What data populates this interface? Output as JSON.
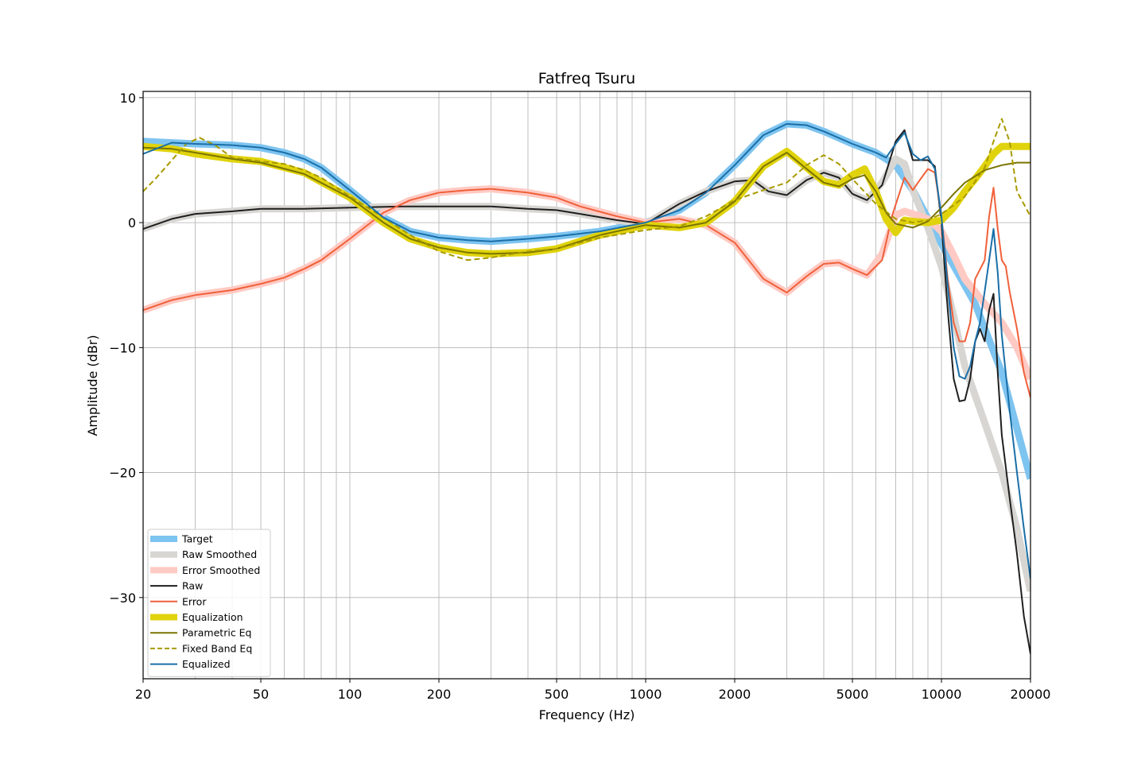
{
  "chart_data": {
    "type": "line",
    "title": "Fatfreq Tsuru",
    "xlabel": "Frequency (Hz)",
    "ylabel": "Amplitude (dBr)",
    "x_scale": "log",
    "xlim": [
      20,
      20000
    ],
    "ylim": [
      -36.5,
      10.5
    ],
    "x_ticks": [
      {
        "value": 20,
        "label": "20"
      },
      {
        "value": 50,
        "label": "50"
      },
      {
        "value": 100,
        "label": "100"
      },
      {
        "value": 200,
        "label": "200"
      },
      {
        "value": 500,
        "label": "500"
      },
      {
        "value": 1000,
        "label": "1000"
      },
      {
        "value": 2000,
        "label": "2000"
      },
      {
        "value": 5000,
        "label": "5000"
      },
      {
        "value": 10000,
        "label": "10000"
      },
      {
        "value": 20000,
        "label": "20000"
      }
    ],
    "y_ticks": [
      {
        "value": 10,
        "label": "10"
      },
      {
        "value": 0,
        "label": "0"
      },
      {
        "value": -10,
        "label": "−10"
      },
      {
        "value": -20,
        "label": "−20"
      },
      {
        "value": -30,
        "label": "−30"
      }
    ],
    "grid": true,
    "legend_position": "lower-left",
    "series": [
      {
        "name": "Target",
        "color": "#7ec4f0",
        "style": "thick",
        "opacity": 1,
        "x": [
          20,
          30,
          40,
          50,
          60,
          70,
          80,
          100,
          130,
          160,
          200,
          250,
          300,
          400,
          500,
          700,
          1000,
          1300,
          1600,
          2000,
          2500,
          3000,
          3500,
          4000,
          5000,
          6000,
          7000,
          8000,
          10000,
          13000,
          16000,
          20000
        ],
        "y": [
          6.5,
          6.3,
          6.2,
          6.0,
          5.6,
          5.1,
          4.4,
          2.6,
          0.4,
          -0.7,
          -1.2,
          -1.4,
          -1.5,
          -1.3,
          -1.1,
          -0.7,
          0.0,
          1.0,
          2.4,
          4.6,
          7.0,
          7.9,
          7.8,
          7.3,
          6.3,
          5.6,
          4.6,
          2.6,
          -1.7,
          -6.5,
          -12.0,
          -20.5
        ]
      },
      {
        "name": "Raw Smoothed",
        "color": "#d8d6d2",
        "style": "thick",
        "opacity": 1,
        "x": [
          20,
          25,
          30,
          40,
          50,
          70,
          100,
          150,
          200,
          300,
          400,
          500,
          600,
          800,
          1000,
          1300,
          1600,
          2000,
          2300,
          2600,
          3000,
          3500,
          4000,
          4500,
          5000,
          5600,
          6300,
          7000,
          7500,
          8000,
          9000,
          10000,
          11000,
          12000,
          14000,
          16000,
          18000,
          20000
        ],
        "y": [
          -0.5,
          0.3,
          0.7,
          0.9,
          1.1,
          1.1,
          1.2,
          1.3,
          1.3,
          1.3,
          1.1,
          1.0,
          0.7,
          0.2,
          -0.1,
          1.5,
          2.5,
          3.3,
          3.4,
          2.5,
          2.2,
          3.4,
          4.0,
          3.6,
          2.3,
          1.8,
          3.2,
          5.1,
          4.7,
          2.6,
          -0.4,
          -3.5,
          -7.5,
          -11.5,
          -16.0,
          -20.0,
          -24.5,
          -29.5
        ]
      },
      {
        "name": "Error Smoothed",
        "color": "#ffcac3",
        "style": "thick",
        "opacity": 1,
        "x": [
          20,
          25,
          30,
          40,
          50,
          60,
          70,
          80,
          100,
          130,
          160,
          200,
          250,
          300,
          400,
          500,
          600,
          800,
          1000,
          1300,
          1600,
          2000,
          2500,
          3000,
          3500,
          4000,
          4500,
          5000,
          5600,
          6300,
          7000,
          7500,
          8000,
          9000,
          10000,
          11000,
          12000,
          14000,
          16000,
          18000,
          20000
        ],
        "y": [
          -7.0,
          -6.2,
          -5.8,
          -5.4,
          -4.9,
          -4.4,
          -3.7,
          -3.0,
          -1.3,
          0.8,
          1.8,
          2.4,
          2.6,
          2.7,
          2.4,
          2.0,
          1.3,
          0.5,
          0.0,
          0.3,
          -0.2,
          -1.6,
          -4.5,
          -5.6,
          -4.3,
          -3.3,
          -3.2,
          -3.7,
          -4.2,
          -2.5,
          0.6,
          0.9,
          0.7,
          0.3,
          -0.7,
          -2.6,
          -4.5,
          -6.5,
          -8.0,
          -10.0,
          -12.5
        ]
      },
      {
        "name": "Raw",
        "color": "#1f1f1f",
        "style": "thin",
        "opacity": 1,
        "x": [
          20,
          25,
          30,
          40,
          50,
          70,
          100,
          150,
          200,
          300,
          400,
          500,
          600,
          800,
          1000,
          1300,
          1600,
          2000,
          2300,
          2600,
          3000,
          3500,
          4000,
          4500,
          5000,
          5600,
          6300,
          7000,
          7500,
          8000,
          8500,
          9000,
          9500,
          10000,
          10500,
          11000,
          11500,
          12000,
          12500,
          13000,
          13500,
          14000,
          14500,
          15000,
          15500,
          16000,
          17000,
          18000,
          19000,
          20000
        ],
        "y": [
          -0.5,
          0.3,
          0.7,
          0.9,
          1.1,
          1.1,
          1.2,
          1.3,
          1.3,
          1.3,
          1.1,
          1.0,
          0.7,
          0.2,
          -0.1,
          1.5,
          2.5,
          3.3,
          3.4,
          2.5,
          2.2,
          3.4,
          4.0,
          3.6,
          2.3,
          1.8,
          3.0,
          6.5,
          7.4,
          5.0,
          5.0,
          5.0,
          4.5,
          0.0,
          -7.0,
          -12.5,
          -14.3,
          -14.2,
          -12.5,
          -9.5,
          -8.5,
          -9.5,
          -7.0,
          -5.7,
          -12.0,
          -17.0,
          -22.0,
          -26.5,
          -31.5,
          -34.5
        ]
      },
      {
        "name": "Error",
        "color": "#f0603a",
        "style": "thin",
        "opacity": 1,
        "x": [
          20,
          25,
          30,
          40,
          50,
          60,
          70,
          80,
          100,
          130,
          160,
          200,
          250,
          300,
          400,
          500,
          600,
          800,
          1000,
          1300,
          1600,
          2000,
          2500,
          3000,
          3500,
          4000,
          4500,
          5000,
          5600,
          6300,
          6800,
          7500,
          8000,
          8500,
          9000,
          9500,
          10000,
          10500,
          11000,
          11500,
          12000,
          12500,
          13000,
          14000,
          14500,
          15000,
          15500,
          16000,
          16500,
          17000,
          18000,
          19000,
          20000
        ],
        "y": [
          -7.0,
          -6.2,
          -5.8,
          -5.4,
          -4.9,
          -4.4,
          -3.7,
          -3.0,
          -1.3,
          0.8,
          1.8,
          2.4,
          2.6,
          2.7,
          2.4,
          2.0,
          1.3,
          0.5,
          0.0,
          0.3,
          -0.2,
          -1.6,
          -4.5,
          -5.6,
          -4.3,
          -3.3,
          -3.2,
          -3.7,
          -4.2,
          -3.0,
          0.5,
          3.6,
          2.6,
          3.5,
          4.3,
          4.0,
          0.5,
          -4.5,
          -8.0,
          -9.5,
          -9.5,
          -8.0,
          -4.5,
          -3.0,
          0.5,
          2.8,
          -0.5,
          -3.0,
          -3.5,
          -5.5,
          -8.5,
          -12.0,
          -14.0
        ]
      },
      {
        "name": "Equalization",
        "color": "#e0d30c",
        "style": "thick",
        "opacity": 1,
        "x": [
          20,
          25,
          30,
          40,
          50,
          70,
          100,
          130,
          160,
          200,
          250,
          300,
          400,
          500,
          700,
          1000,
          1300,
          1600,
          2000,
          2500,
          3000,
          3500,
          4000,
          4500,
          5000,
          5500,
          6000,
          6500,
          7000,
          7500,
          8000,
          9000,
          10000,
          11000,
          12000,
          13000,
          14000,
          15000,
          16000,
          17000,
          18000,
          20000
        ],
        "y": [
          6.1,
          5.9,
          5.5,
          5.1,
          4.9,
          4.0,
          2.0,
          0.0,
          -1.3,
          -2.0,
          -2.4,
          -2.5,
          -2.4,
          -2.1,
          -1.0,
          -0.2,
          -0.4,
          0.0,
          1.7,
          4.5,
          5.7,
          4.4,
          3.3,
          3.0,
          3.8,
          4.3,
          2.5,
          0.3,
          -0.8,
          0.2,
          0.1,
          0.0,
          0.2,
          1.2,
          2.5,
          3.5,
          4.5,
          5.5,
          6.1,
          6.1,
          6.1,
          6.1
        ]
      },
      {
        "name": "Parametric Eq",
        "color": "#7b7400",
        "style": "thin",
        "opacity": 1,
        "x": [
          20,
          25,
          30,
          40,
          50,
          70,
          100,
          130,
          160,
          200,
          250,
          300,
          400,
          500,
          700,
          1000,
          1300,
          1600,
          2000,
          2500,
          3000,
          3500,
          4000,
          4500,
          5000,
          5500,
          6000,
          6500,
          7000,
          8000,
          9000,
          10000,
          11000,
          12000,
          14000,
          16000,
          18000,
          20000
        ],
        "y": [
          6.0,
          5.9,
          5.6,
          5.1,
          4.8,
          3.9,
          2.0,
          0.0,
          -1.3,
          -2.0,
          -2.4,
          -2.5,
          -2.4,
          -2.1,
          -1.0,
          -0.2,
          -0.4,
          0.0,
          1.7,
          4.5,
          5.6,
          4.3,
          3.2,
          2.9,
          3.5,
          3.8,
          2.5,
          0.8,
          -0.1,
          -0.4,
          0.1,
          1.2,
          2.3,
          3.2,
          4.2,
          4.6,
          4.8,
          4.8
        ]
      },
      {
        "name": "Fixed Band Eq",
        "color": "#a89a00",
        "style": "dashed",
        "opacity": 1,
        "x": [
          20,
          22,
          25,
          28,
          31,
          35,
          40,
          50,
          60,
          70,
          80,
          100,
          130,
          160,
          200,
          250,
          300,
          400,
          500,
          700,
          1000,
          1300,
          1600,
          2000,
          2500,
          3000,
          3500,
          4000,
          4500,
          5000,
          6000,
          7000,
          8000,
          9000,
          10000,
          11000,
          12000,
          14000,
          15000,
          16000,
          17000,
          18000,
          20000
        ],
        "y": [
          2.5,
          3.5,
          5.0,
          6.3,
          6.8,
          6.2,
          5.2,
          4.9,
          4.7,
          4.2,
          3.6,
          2.1,
          0.4,
          -1.0,
          -2.3,
          -3.0,
          -2.8,
          -2.3,
          -2.1,
          -1.2,
          -0.6,
          -0.3,
          0.5,
          1.8,
          2.6,
          3.2,
          4.6,
          5.4,
          4.7,
          3.5,
          1.5,
          0.3,
          0.0,
          0.2,
          0.7,
          1.4,
          2.1,
          4.4,
          6.5,
          8.3,
          6.5,
          2.5,
          0.5
        ]
      },
      {
        "name": "Equalized",
        "color": "#1a6fa8",
        "style": "thin",
        "opacity": 1,
        "x": [
          20,
          25,
          30,
          40,
          50,
          60,
          70,
          80,
          100,
          130,
          160,
          200,
          250,
          300,
          400,
          500,
          700,
          1000,
          1300,
          1600,
          2000,
          2500,
          3000,
          3500,
          4000,
          5000,
          6000,
          6500,
          7000,
          7500,
          8000,
          8500,
          9000,
          9500,
          10000,
          10500,
          11000,
          11500,
          12000,
          12500,
          13000,
          13500,
          14000,
          14500,
          15000,
          15500,
          16000,
          17000,
          18000,
          19000,
          20000
        ],
        "y": [
          5.5,
          6.4,
          6.3,
          6.2,
          6.0,
          5.6,
          5.1,
          4.4,
          2.6,
          0.4,
          -0.7,
          -1.2,
          -1.4,
          -1.5,
          -1.3,
          -1.1,
          -0.7,
          0.0,
          1.0,
          2.4,
          4.6,
          7.0,
          7.9,
          7.8,
          7.3,
          6.3,
          5.6,
          5.2,
          6.3,
          7.2,
          5.5,
          5.0,
          5.3,
          4.3,
          0.5,
          -5.0,
          -10.0,
          -12.3,
          -12.5,
          -11.5,
          -9.5,
          -8.0,
          -5.5,
          -3.0,
          -0.5,
          -4.0,
          -9.0,
          -15.0,
          -20.0,
          -24.5,
          -28.5
        ]
      }
    ]
  }
}
